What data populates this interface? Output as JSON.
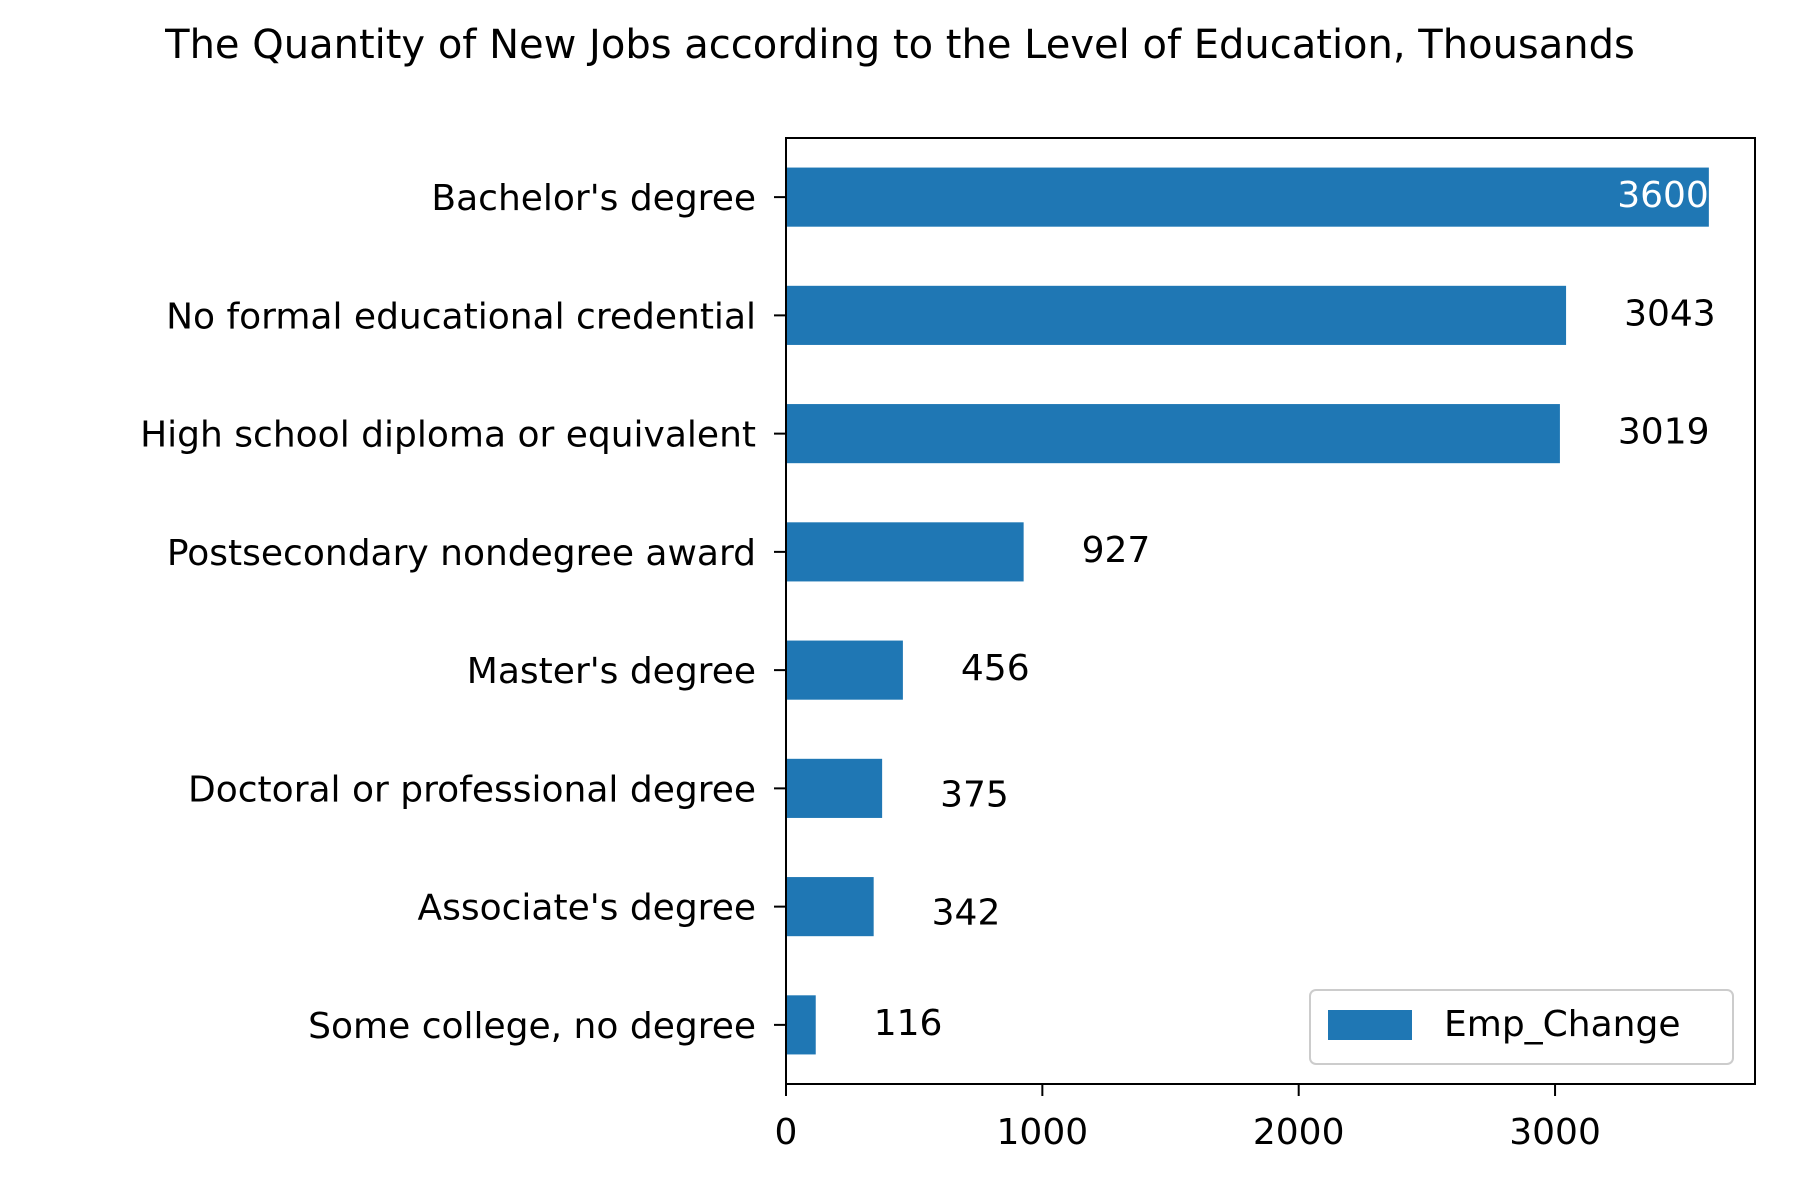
{
  "chart_data": {
    "type": "bar",
    "orientation": "horizontal",
    "title": "The Quantity of New Jobs according to the Level of Education, Thousands",
    "xlabel": "",
    "ylabel": "",
    "categories": [
      "Bachelor's degree",
      "No formal educational credential",
      "High school diploma or equivalent",
      "Postsecondary nondegree award",
      "Master's degree",
      "Doctoral or professional degree",
      "Associate's degree",
      "Some college, no degree"
    ],
    "series": [
      {
        "name": "Emp_Change",
        "values": [
          3600,
          3043,
          3019,
          927,
          456,
          375,
          342,
          116
        ],
        "data_labels": [
          "3600",
          "3043",
          "3019",
          "927",
          "456",
          "375",
          "342",
          "116"
        ],
        "color": "#1f77b4"
      }
    ],
    "xlim": [
      0,
      3780
    ],
    "x_ticks": [
      0,
      1000,
      2000,
      3000
    ],
    "x_tick_labels": [
      "0",
      "1000",
      "2000",
      "3000"
    ],
    "grid": false,
    "legend": {
      "position": "lower-right",
      "entries": [
        "Emp_Change"
      ]
    },
    "colors": {
      "bar": "#1f77b4",
      "label_inside": "#ffffff",
      "label_outside": "#000000",
      "axes": "#000000",
      "legend_border": "#cccccc"
    }
  }
}
